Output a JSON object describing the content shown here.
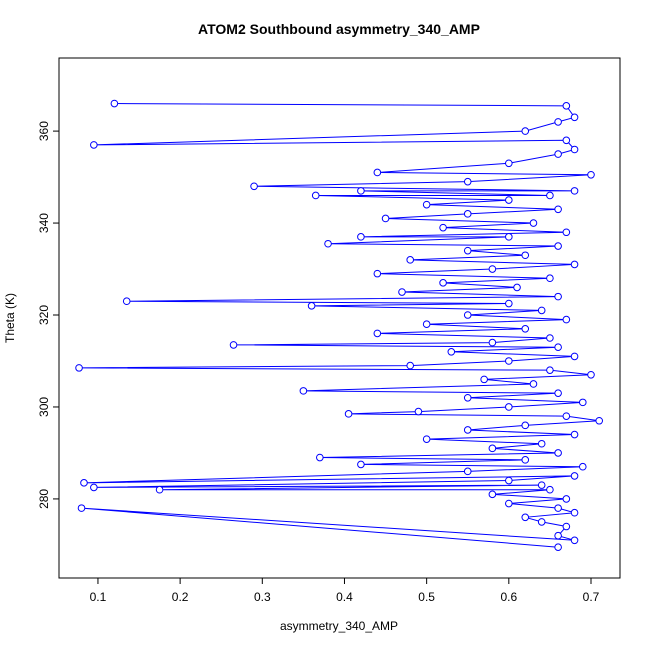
{
  "chart_data": {
    "type": "line",
    "markers": true,
    "color": "#0000ff",
    "title": "ATOM2 Southbound asymmetry_340_AMP",
    "xlabel": "asymmetry_340_AMP",
    "ylabel": "Theta (K)",
    "xlim": [
      0.0526,
      0.7353
    ],
    "ylim": [
      262.8,
      375.9
    ],
    "xticks": [
      0.1,
      0.2,
      0.3,
      0.4,
      0.5,
      0.6,
      0.7
    ],
    "yticks": [
      280,
      300,
      320,
      340,
      360
    ],
    "x": [
      0.12,
      0.67,
      0.68,
      0.66,
      0.62,
      0.095,
      0.67,
      0.68,
      0.66,
      0.6,
      0.44,
      0.7,
      0.55,
      0.29,
      0.68,
      0.42,
      0.65,
      0.365,
      0.6,
      0.5,
      0.66,
      0.55,
      0.45,
      0.63,
      0.52,
      0.67,
      0.42,
      0.6,
      0.38,
      0.66,
      0.55,
      0.62,
      0.48,
      0.68,
      0.58,
      0.44,
      0.65,
      0.52,
      0.61,
      0.47,
      0.66,
      0.135,
      0.6,
      0.36,
      0.64,
      0.55,
      0.67,
      0.5,
      0.62,
      0.44,
      0.65,
      0.58,
      0.265,
      0.66,
      0.53,
      0.68,
      0.6,
      0.48,
      0.077,
      0.65,
      0.7,
      0.57,
      0.63,
      0.35,
      0.66,
      0.55,
      0.69,
      0.6,
      0.49,
      0.405,
      0.67,
      0.71,
      0.62,
      0.55,
      0.68,
      0.5,
      0.64,
      0.58,
      0.66,
      0.37,
      0.62,
      0.42,
      0.69,
      0.55,
      0.083,
      0.68,
      0.6,
      0.095,
      0.64,
      0.175,
      0.65,
      0.58,
      0.67,
      0.6,
      0.66,
      0.68,
      0.62,
      0.64,
      0.67,
      0.66,
      0.68,
      0.08,
      0.66
    ],
    "values": [
      366,
      365.5,
      363,
      362,
      360,
      357,
      358,
      356,
      355,
      353,
      351,
      350.5,
      349,
      348,
      347,
      347,
      346,
      346,
      345,
      344,
      343,
      342,
      341,
      340,
      339,
      338,
      337,
      337,
      335.5,
      335,
      334,
      333,
      332,
      331,
      330,
      329,
      328,
      327,
      326,
      325,
      324,
      323,
      322.5,
      322,
      321,
      320,
      319,
      318,
      317,
      316,
      315,
      314,
      313.5,
      313,
      312,
      311,
      310,
      309,
      308.5,
      308,
      307,
      306,
      305,
      303.5,
      303,
      302,
      301,
      300,
      299,
      298.5,
      298,
      297,
      296,
      295,
      294,
      293,
      292,
      291,
      290,
      289,
      288.5,
      287.5,
      287,
      286,
      283.5,
      285,
      284,
      282.5,
      283,
      282,
      282,
      281,
      280,
      279,
      278,
      277,
      276,
      275,
      274,
      272,
      271,
      278,
      269.5
    ]
  }
}
